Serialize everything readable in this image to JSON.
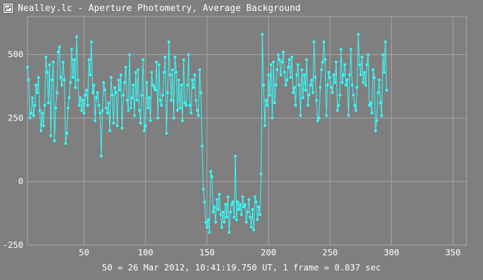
{
  "window": {
    "title": "Nealley.lc - Aperture Photometry, Average Background",
    "icon": "chart-app-icon"
  },
  "footer": {
    "caption": "50 = 26 Mar 2012, 10:41:19.750 UT, 1 frame = 0.037 sec"
  },
  "colors": {
    "background": "#7f7f7f",
    "grid": "#a8a8a8",
    "series": "#33ffff",
    "text": "#ffffff"
  },
  "chart_data": {
    "type": "line",
    "title": "",
    "xlabel": "",
    "ylabel": "",
    "xlim": [
      4,
      361
    ],
    "ylim": [
      -250,
      650
    ],
    "xticks": [
      50,
      100,
      150,
      200,
      250,
      300,
      350
    ],
    "yticks": [
      -250,
      0,
      250,
      500
    ],
    "grid": true,
    "markers": true,
    "series": [
      {
        "x_start": 4,
        "x_step": 1,
        "values": [
          450,
          400,
          250,
          270,
          330,
          260,
          300,
          380,
          350,
          410,
          280,
          200,
          270,
          220,
          300,
          490,
          430,
          310,
          460,
          180,
          400,
          470,
          160,
          290,
          350,
          510,
          530,
          410,
          380,
          470,
          400,
          150,
          190,
          290,
          330,
          390,
          520,
          410,
          480,
          370,
          570,
          400,
          300,
          330,
          280,
          320,
          270,
          340,
          360,
          300,
          480,
          420,
          550,
          350,
          380,
          240,
          330,
          350,
          300,
          270,
          100,
          280,
          390,
          360,
          290,
          270,
          310,
          200,
          410,
          340,
          230,
          370,
          350,
          220,
          400,
          360,
          420,
          210,
          340,
          390,
          450,
          320,
          280,
          500,
          290,
          330,
          380,
          260,
          430,
          320,
          440,
          280,
          230,
          340,
          480,
          200,
          220,
          390,
          290,
          330,
          240,
          430,
          380,
          370,
          360,
          470,
          250,
          460,
          320,
          300,
          340,
          430,
          490,
          190,
          350,
          550,
          420,
          320,
          440,
          250,
          490,
          430,
          280,
          400,
          290,
          380,
          240,
          480,
          310,
          300,
          380,
          500,
          300,
          270,
          400,
          370,
          420,
          320,
          280,
          260,
          440,
          350,
          140,
          -30,
          -80,
          -160,
          -180,
          -150,
          -200,
          40,
          20,
          -120,
          -100,
          -160,
          -70,
          -110,
          -50,
          -130,
          -180,
          -120,
          -160,
          -90,
          -140,
          -60,
          -200,
          -120,
          -90,
          -80,
          -140,
          100,
          -150,
          -80,
          -110,
          -90,
          -130,
          -60,
          -100,
          -90,
          -160,
          -120,
          -70,
          -140,
          -180,
          -110,
          -190,
          -60,
          -80,
          -150,
          -100,
          -130,
          30,
          580,
          380,
          220,
          320,
          300,
          420,
          340,
          460,
          250,
          470,
          310,
          380,
          440,
          500,
          480,
          420,
          470,
          510,
          430,
          380,
          400,
          450,
          480,
          410,
          490,
          350,
          370,
          300,
          420,
          460,
          380,
          260,
          440,
          330,
          420,
          360,
          480,
          300,
          340,
          380,
          400,
          350,
          550,
          410,
          320,
          240,
          250,
          370,
          440,
          470,
          550,
          480,
          260,
          380,
          430,
          410,
          370,
          350,
          420,
          390,
          470,
          280,
          300,
          340,
          520,
          390,
          420,
          460,
          380,
          400,
          260,
          420,
          520,
          380,
          340,
          300,
          280,
          370,
          580,
          460,
          420,
          490,
          390,
          430,
          380,
          460,
          500,
          300,
          310,
          270,
          440,
          410,
          200,
          240,
          350,
          400,
          310,
          260,
          500,
          430,
          550,
          360
        ]
      }
    ]
  }
}
